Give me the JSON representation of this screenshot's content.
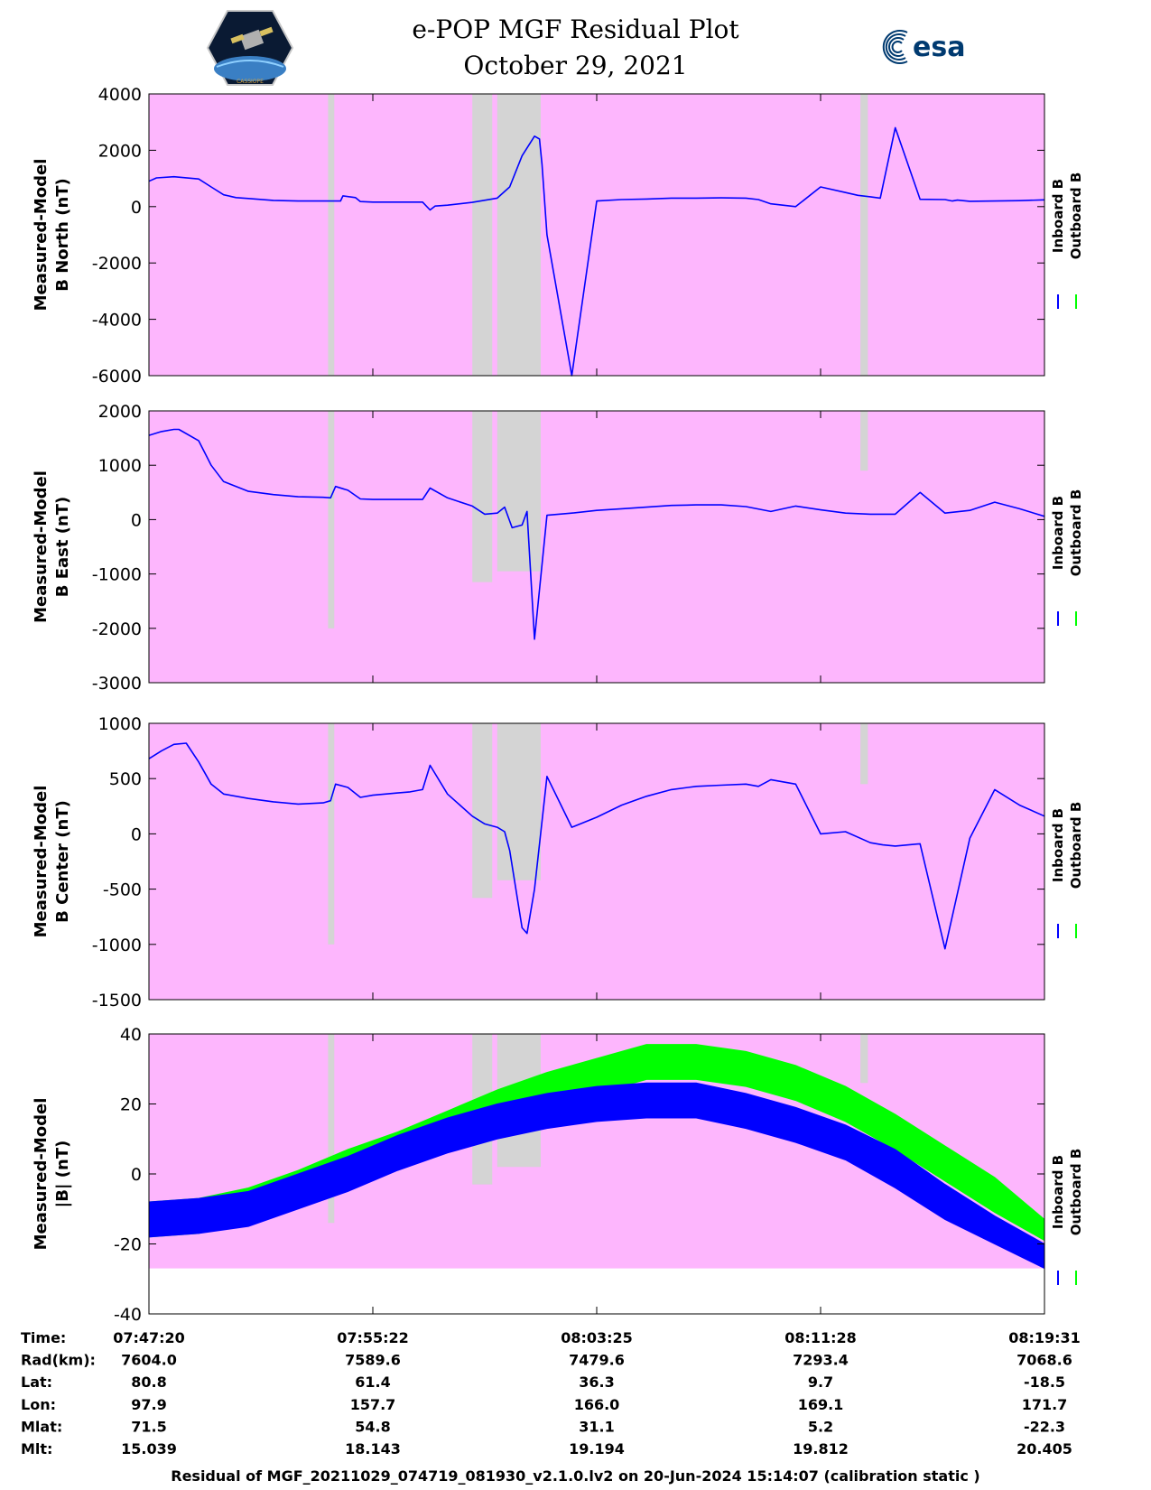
{
  "header": {
    "title_line1": "e-POP MGF Residual Plot",
    "title_line2": "October 29, 2021",
    "logo_left": "cassiope-mission-logo",
    "logo_right_text": "esa"
  },
  "colors": {
    "panel_bg": "#fdb6fd",
    "gap_fill": "#d4d4d4",
    "inboard": "#0000ff",
    "outboard": "#00ff00"
  },
  "chart_data": [
    {
      "type": "line",
      "ylabel": [
        "Measured-Model",
        "B North (nT)"
      ],
      "ylim": [
        -6000,
        4000
      ],
      "yticks": [
        "4000",
        "2000",
        "0",
        "-2000",
        "-4000",
        "-6000"
      ],
      "legend": [
        "Inboard B",
        "Outboard B"
      ],
      "series": [
        {
          "name": "Inboard B",
          "x": [
            0,
            0.3,
            1,
            2,
            2.5,
            3,
            3.5,
            4,
            5,
            6,
            7,
            7.7,
            7.8,
            8.3,
            8.5,
            9,
            10,
            11,
            11.3,
            11.5,
            12,
            13,
            14,
            14.5,
            15,
            15.5,
            15.7,
            15.8,
            16,
            17,
            18,
            19,
            20,
            21,
            22,
            23,
            24,
            24.5,
            25,
            26,
            27,
            28,
            28.5,
            29,
            29.4,
            30,
            31,
            32,
            32.3,
            32.5,
            33,
            34,
            35,
            36
          ],
          "y": [
            900,
            1020,
            1060,
            980,
            700,
            420,
            320,
            290,
            220,
            200,
            200,
            200,
            380,
            320,
            180,
            160,
            160,
            160,
            -120,
            20,
            50,
            150,
            300,
            700,
            1800,
            2500,
            2400,
            1500,
            -1000,
            -6000,
            200,
            250,
            270,
            300,
            300,
            310,
            300,
            250,
            100,
            0,
            700,
            500,
            400,
            350,
            300,
            2800,
            260,
            250,
            200,
            230,
            190,
            200,
            210,
            240
          ]
        }
      ],
      "gaps": [
        {
          "x0": 7.2,
          "x1": 7.45,
          "y0": -6000,
          "y1": 4000
        },
        {
          "x0": 13.0,
          "x1": 13.8,
          "y0": -6000,
          "y1": 4000
        },
        {
          "x0": 14.0,
          "x1": 15.75,
          "y0": -6000,
          "y1": 4000
        },
        {
          "x0": 28.6,
          "x1": 28.9,
          "y0": -6000,
          "y1": 4000
        }
      ]
    },
    {
      "type": "line",
      "ylabel": [
        "Measured-Model",
        "B East (nT)"
      ],
      "ylim": [
        -3000,
        2000
      ],
      "yticks": [
        "2000",
        "1000",
        "0",
        "-1000",
        "-2000",
        "-3000"
      ],
      "legend": [
        "Inboard B",
        "Outboard B"
      ],
      "series": [
        {
          "name": "Inboard B",
          "x": [
            0,
            0.5,
            1,
            1.2,
            2,
            2.5,
            3,
            4,
            5,
            6,
            7,
            7.3,
            7.5,
            8,
            8.5,
            9,
            10,
            10.5,
            11,
            11,
            11.3,
            12,
            13,
            13.5,
            14,
            14.3,
            14.6,
            15,
            15.2,
            15.5,
            16,
            17,
            18,
            19,
            20,
            21,
            22,
            23,
            24,
            25,
            26,
            27,
            28,
            29,
            29.5,
            30,
            31,
            32,
            33,
            34,
            35,
            36
          ],
          "y": [
            1550,
            1620,
            1660,
            1660,
            1450,
            1000,
            700,
            520,
            460,
            420,
            410,
            400,
            610,
            540,
            380,
            370,
            370,
            370,
            370,
            370,
            580,
            400,
            250,
            100,
            120,
            230,
            -150,
            -100,
            150,
            -2200,
            80,
            120,
            170,
            200,
            230,
            260,
            270,
            270,
            240,
            150,
            250,
            180,
            120,
            100,
            100,
            100,
            500,
            120,
            170,
            320,
            200,
            60
          ]
        }
      ],
      "gaps": [
        {
          "x0": 7.2,
          "x1": 7.45,
          "y0": -2000,
          "y1": 2000
        },
        {
          "x0": 13.0,
          "x1": 13.8,
          "y0": -1150,
          "y1": 2000
        },
        {
          "x0": 14.0,
          "x1": 15.75,
          "y0": -950,
          "y1": 2000
        },
        {
          "x0": 28.6,
          "x1": 28.9,
          "y0": 900,
          "y1": 2000
        }
      ]
    },
    {
      "type": "line",
      "ylabel": [
        "Measured-Model",
        "B Center (nT)"
      ],
      "ylim": [
        -1500,
        1000
      ],
      "yticks": [
        "1000",
        "500",
        "0",
        "-500",
        "-1000",
        "-1500"
      ],
      "legend": [
        "Inboard B",
        "Outboard B"
      ],
      "series": [
        {
          "name": "Inboard B",
          "x": [
            0,
            0.5,
            1,
            1.5,
            2,
            2.5,
            3,
            4,
            5,
            6,
            7,
            7.3,
            7.5,
            8,
            8.5,
            9,
            10,
            10.5,
            11,
            11.3,
            12,
            13,
            13.5,
            14,
            14.3,
            14.5,
            15,
            15.2,
            15.5,
            16,
            17,
            18,
            19,
            20,
            21,
            22,
            23,
            24,
            24.5,
            25,
            26,
            27,
            28,
            29,
            29.5,
            30,
            31,
            32,
            33,
            34,
            35,
            36
          ],
          "y": [
            680,
            750,
            810,
            820,
            650,
            450,
            360,
            320,
            290,
            270,
            280,
            300,
            450,
            420,
            330,
            350,
            370,
            380,
            400,
            620,
            360,
            160,
            90,
            60,
            20,
            -150,
            -850,
            -900,
            -500,
            520,
            60,
            150,
            260,
            340,
            400,
            430,
            440,
            450,
            430,
            490,
            450,
            0,
            20,
            -80,
            -100,
            -110,
            -90,
            -1040,
            -40,
            400,
            260,
            160
          ]
        }
      ],
      "gaps": [
        {
          "x0": 7.2,
          "x1": 7.45,
          "y0": -1000,
          "y1": 1000
        },
        {
          "x0": 13.0,
          "x1": 13.8,
          "y0": -580,
          "y1": 1000
        },
        {
          "x0": 14.0,
          "x1": 15.75,
          "y0": -420,
          "y1": 1000
        },
        {
          "x0": 28.6,
          "x1": 28.9,
          "y0": 450,
          "y1": 1000
        }
      ]
    },
    {
      "type": "area",
      "ylabel": [
        "Measured-Model",
        "|B| (nT)"
      ],
      "ylim": [
        -40,
        40
      ],
      "yticks": [
        "40",
        "20",
        "0",
        "-20",
        "-40"
      ],
      "legend": [
        "Inboard B",
        "Outboard B"
      ],
      "series": [
        {
          "name": "Outboard B",
          "x": [
            0,
            2,
            4,
            6,
            8,
            10,
            12,
            14,
            16,
            18,
            20,
            22,
            24,
            26,
            28,
            30,
            32,
            34,
            36
          ],
          "upper": [
            -8,
            -7,
            -4,
            1,
            7,
            12,
            18,
            24,
            29,
            33,
            37,
            37,
            35,
            31,
            25,
            17,
            8,
            -1,
            -13
          ],
          "lower": [
            -18,
            -17,
            -14,
            -9,
            -3,
            2,
            8,
            14,
            19,
            23,
            27,
            27,
            25,
            21,
            15,
            7,
            -2,
            -11,
            -19
          ]
        },
        {
          "name": "Inboard B",
          "x": [
            0,
            2,
            4,
            6,
            8,
            10,
            12,
            14,
            16,
            18,
            20,
            22,
            24,
            26,
            28,
            30,
            32,
            34,
            36
          ],
          "upper": [
            -8,
            -7,
            -5,
            0,
            5,
            11,
            16,
            20,
            23,
            25,
            26,
            26,
            23,
            19,
            14,
            7,
            -3,
            -12,
            -20
          ],
          "lower": [
            -18,
            -17,
            -15,
            -10,
            -5,
            1,
            6,
            10,
            13,
            15,
            16,
            16,
            13,
            9,
            4,
            -4,
            -13,
            -20,
            -27
          ]
        }
      ],
      "gaps": [
        {
          "x0": 7.2,
          "x1": 7.45,
          "y0": -14,
          "y1": 40
        },
        {
          "x0": 13.0,
          "x1": 13.8,
          "y0": -3,
          "y1": 40
        },
        {
          "x0": 14.0,
          "x1": 15.75,
          "y0": 2,
          "y1": 40
        },
        {
          "x0": 28.6,
          "x1": 28.9,
          "y0": 26,
          "y1": 40
        }
      ],
      "background_ylim": [
        -27,
        40
      ]
    }
  ],
  "xaxis": {
    "xlim": [
      0,
      36
    ],
    "tick_positions": [
      0,
      9,
      18,
      27,
      36
    ]
  },
  "ephemeris": {
    "labels": [
      "Time:",
      "Rad(km):",
      "Lat:",
      "Lon:",
      "Mlat:",
      "Mlt:"
    ],
    "columns": [
      [
        "07:47:20",
        "7604.0",
        "80.8",
        "97.9",
        "71.5",
        "15.039"
      ],
      [
        "07:55:22",
        "7589.6",
        "61.4",
        "157.7",
        "54.8",
        "18.143"
      ],
      [
        "08:03:25",
        "7479.6",
        "36.3",
        "166.0",
        "31.1",
        "19.194"
      ],
      [
        "08:11:28",
        "7293.4",
        "9.7",
        "169.1",
        "5.2",
        "19.812"
      ],
      [
        "08:19:31",
        "7068.6",
        "-18.5",
        "171.7",
        "-22.3",
        "20.405"
      ]
    ]
  },
  "footer": {
    "text": "Residual of MGF_20211029_074719_081930_v2.1.0.lv2 on 20-Jun-2024 15:14:07 (calibration static )"
  }
}
